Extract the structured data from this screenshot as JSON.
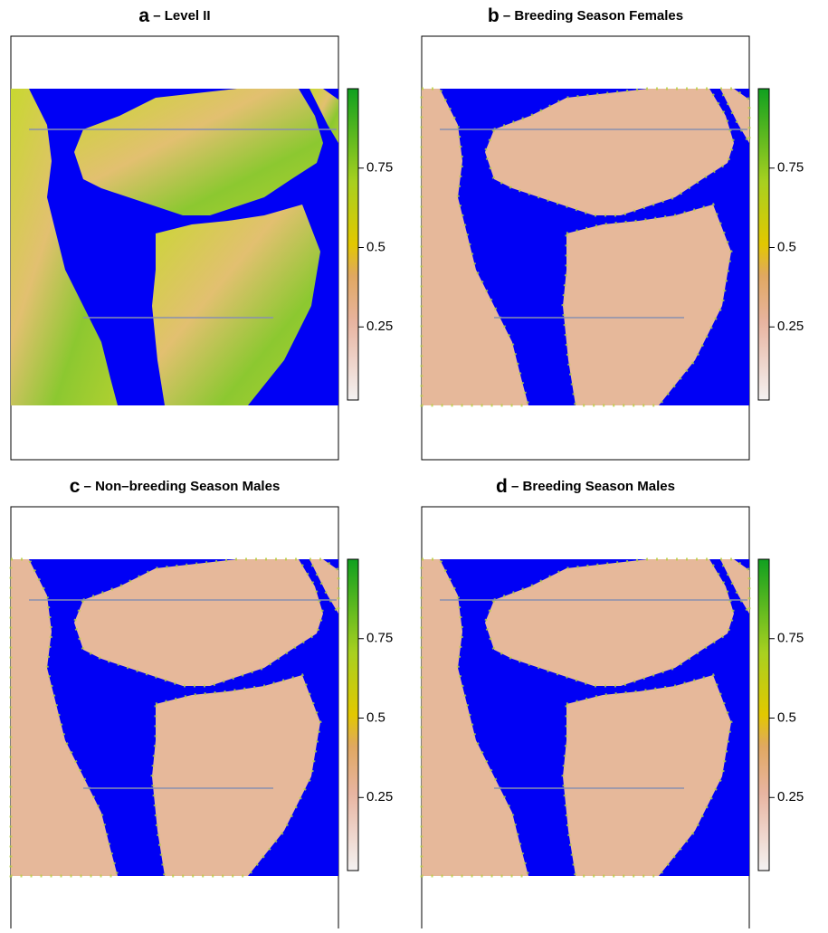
{
  "panels": [
    {
      "letter": "a",
      "title": "– Level II",
      "colorbar": {
        "lim": [
          0.02,
          1.0
        ],
        "ticks": [
          0.25,
          0.5,
          0.75
        ]
      }
    },
    {
      "letter": "b",
      "title": "– Breeding Season Females",
      "colorbar": {
        "lim": [
          0.02,
          1.0
        ],
        "ticks": [
          0.25,
          0.5,
          0.75
        ]
      }
    },
    {
      "letter": "c",
      "title": "– Non–breeding Season Males",
      "colorbar": {
        "lim": [
          0.02,
          1.0
        ],
        "ticks": [
          0.25,
          0.5,
          0.75
        ]
      }
    },
    {
      "letter": "d",
      "title": "– Breeding Season Males",
      "colorbar": {
        "lim": [
          0.02,
          1.0
        ],
        "ticks": [
          0.25,
          0.5,
          0.75
        ]
      }
    }
  ]
}
